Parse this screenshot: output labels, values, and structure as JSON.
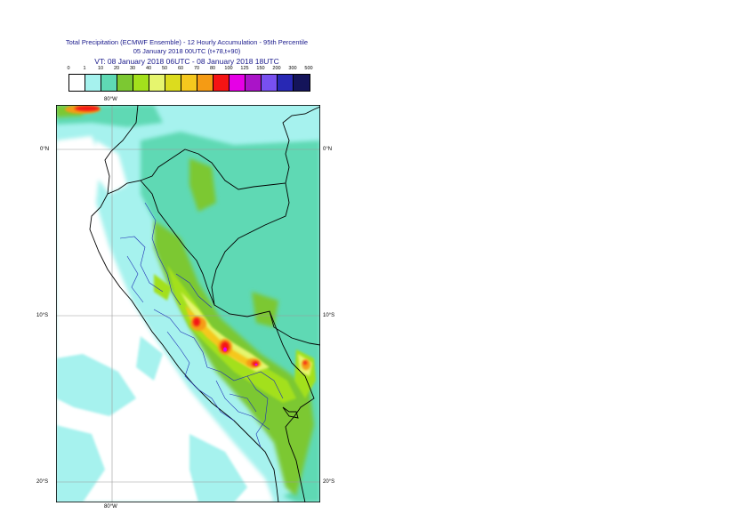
{
  "title": {
    "line1": "Total Precipitation (ECMWF Ensemble) - 12 Hourly Accumulation - 95th Percentile",
    "line2": "05 January 2018 00UTC (t+78,t+90)",
    "line3": "VT: 08 January 2018 06UTC - 08 January 2018 18UTC"
  },
  "legend": {
    "thresholds": [
      "0",
      "1",
      "10",
      "20",
      "30",
      "40",
      "50",
      "60",
      "70",
      "80",
      "100",
      "125",
      "150",
      "200",
      "300",
      "500"
    ],
    "colors": [
      "#ffffff",
      "#a6f2ee",
      "#5fd9b4",
      "#7cc832",
      "#a3e01c",
      "#e6f56e",
      "#dcdc1e",
      "#f5c81e",
      "#f59b14",
      "#f51414",
      "#e600e6",
      "#aa14c8",
      "#7850f0",
      "#2828b4",
      "#14145a"
    ]
  },
  "axes": {
    "lon_top": "80°W",
    "lon_bottom": "80°W",
    "lat_0_left": "0°N",
    "lat_0_right": "0°N",
    "lat_10_left": "10°S",
    "lat_10_right": "10°S",
    "lat_20_left": "20°S",
    "lat_20_right": "20°S"
  }
}
